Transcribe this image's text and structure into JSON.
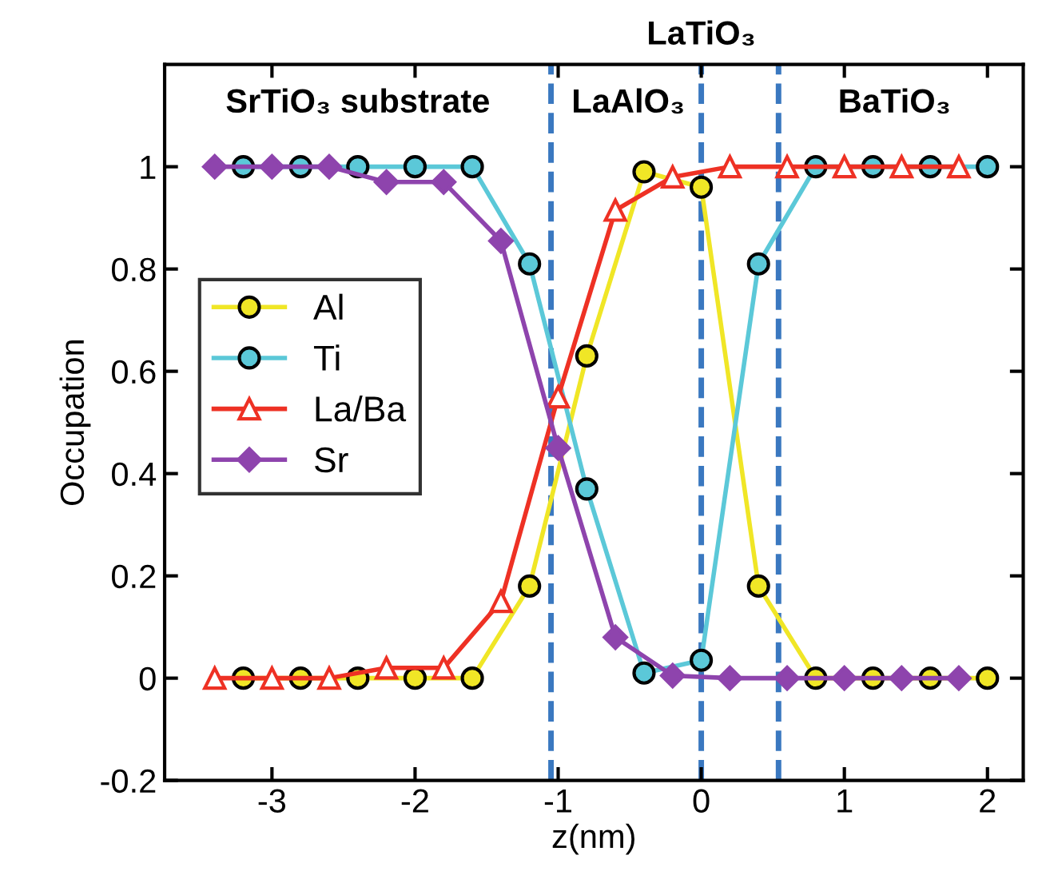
{
  "chart_data": {
    "type": "line",
    "xlabel": "z(nm)",
    "ylabel": "Occupation",
    "xlim": [
      -3.75,
      2.25
    ],
    "ylim": [
      -0.2,
      1.2
    ],
    "xticks": [
      -3,
      -2,
      -1,
      0,
      1,
      2
    ],
    "yticks": [
      -0.2,
      0,
      0.2,
      0.4,
      0.6,
      0.8,
      1
    ],
    "grid": false,
    "legend": "left",
    "series": [
      {
        "name": "Al",
        "color": "#f0e626",
        "marker": "circle",
        "x": [
          -3.2,
          -2.8,
          -2.4,
          -2.0,
          -1.6,
          -1.2,
          -0.8,
          -0.4,
          0,
          0.4,
          0.8,
          1.2,
          1.6,
          2.0
        ],
        "values": [
          0,
          0,
          0,
          0,
          0,
          0.18,
          0.63,
          0.99,
          0.96,
          0.18,
          0,
          0,
          0,
          0
        ]
      },
      {
        "name": "Ti",
        "color": "#5bc8d8",
        "marker": "circle",
        "x": [
          -3.2,
          -2.8,
          -2.4,
          -2.0,
          -1.6,
          -1.2,
          -0.8,
          -0.4,
          0,
          0.4,
          0.8,
          1.2,
          1.6,
          2.0
        ],
        "values": [
          1,
          1,
          1,
          1,
          1,
          0.81,
          0.37,
          0.01,
          0.035,
          0.81,
          1,
          1,
          1,
          1
        ]
      },
      {
        "name": "La/Ba",
        "color": "#ee3124",
        "marker": "triangle",
        "x": [
          -3.4,
          -3.0,
          -2.6,
          -2.2,
          -1.8,
          -1.4,
          -1.0,
          -0.6,
          -0.2,
          0.2,
          0.6,
          1.0,
          1.4,
          1.8
        ],
        "values": [
          0,
          0,
          0,
          0.02,
          0.02,
          0.15,
          0.55,
          0.915,
          0.98,
          1,
          1,
          1,
          1,
          1
        ]
      },
      {
        "name": "Sr",
        "color": "#8e44ad",
        "marker": "diamond",
        "x": [
          -3.4,
          -3.0,
          -2.6,
          -2.2,
          -1.8,
          -1.4,
          -1.0,
          -0.6,
          -0.2,
          0.2,
          0.6,
          1.0,
          1.4,
          1.8
        ],
        "values": [
          1,
          1,
          1,
          0.97,
          0.97,
          0.855,
          0.45,
          0.08,
          0.005,
          0,
          0,
          0,
          0,
          0
        ]
      }
    ],
    "ref_lines": [
      {
        "axis": "x",
        "value": -1.05,
        "color": "#3a78c0",
        "line_style": "dashed"
      },
      {
        "axis": "x",
        "value": 0,
        "color": "#3a78c0",
        "line_style": "dashed"
      },
      {
        "axis": "x",
        "value": 0.54,
        "color": "#3a78c0",
        "line_style": "dashed"
      }
    ],
    "annotations": [
      "SrTiO₃ substrate",
      "LaAlO₃",
      "LaTiO₃",
      "BaTiO₃"
    ]
  }
}
